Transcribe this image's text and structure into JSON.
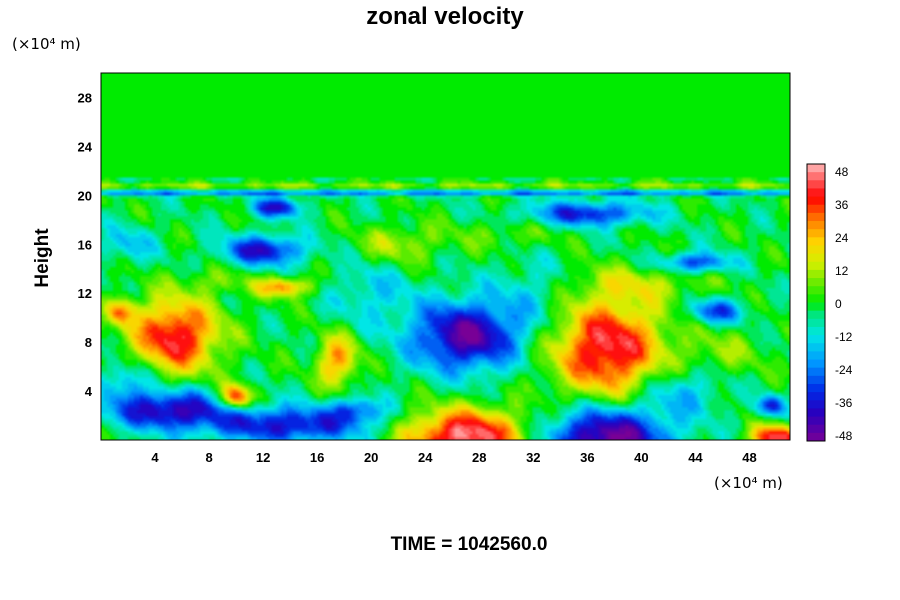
{
  "chart_data": {
    "type": "heatmap",
    "title": "zonal velocity",
    "ylabel": "Height",
    "xlabel": "",
    "x_unit_label": "(×10⁴ m)",
    "y_unit_label": "(×10⁴ m)",
    "x_ticks": [
      "4",
      "8",
      "12",
      "16",
      "20",
      "24",
      "28",
      "32",
      "36",
      "40",
      "44",
      "48"
    ],
    "x_tick_values": [
      4,
      8,
      12,
      16,
      20,
      24,
      28,
      32,
      36,
      40,
      44,
      48
    ],
    "y_ticks": [
      "4",
      "8",
      "12",
      "16",
      "20",
      "24",
      "28"
    ],
    "y_tick_values": [
      4,
      8,
      12,
      16,
      20,
      24,
      28
    ],
    "xlim": [
      0,
      51
    ],
    "ylim": [
      0,
      30
    ],
    "colorbar": {
      "ticks": [
        "48",
        "36",
        "24",
        "12",
        "0",
        "-12",
        "-24",
        "-36",
        "-48"
      ],
      "range": [
        -50,
        50
      ]
    },
    "footer": "TIME = 1042560.0",
    "features": [
      {
        "x": 5.5,
        "y": 8.5,
        "value": 44,
        "rx": 3.2,
        "ry": 3.0
      },
      {
        "x": 10,
        "y": 3.5,
        "value": 42,
        "rx": 1.2,
        "ry": 1.0
      },
      {
        "x": 27,
        "y": 0.3,
        "value": 50,
        "rx": 4.5,
        "ry": 2.2
      },
      {
        "x": 37.5,
        "y": 7.5,
        "value": 46,
        "rx": 4.0,
        "ry": 4.0
      },
      {
        "x": 37.5,
        "y": 0.2,
        "value": -50,
        "rx": 4.5,
        "ry": 2.5
      },
      {
        "x": 27,
        "y": 8.5,
        "value": -45,
        "rx": 4.0,
        "ry": 2.8
      },
      {
        "x": 5,
        "y": 2.5,
        "value": -40,
        "rx": 4.5,
        "ry": 1.6
      },
      {
        "x": 14,
        "y": 1.2,
        "value": -35,
        "rx": 6.0,
        "ry": 1.5
      },
      {
        "x": 12,
        "y": 15.5,
        "value": -36,
        "rx": 3.0,
        "ry": 1.2
      },
      {
        "x": 13,
        "y": 19,
        "value": -34,
        "rx": 1.8,
        "ry": 0.8
      },
      {
        "x": 36,
        "y": 18.5,
        "value": -32,
        "rx": 4.5,
        "ry": 1.0
      },
      {
        "x": 44,
        "y": 14.5,
        "value": -30,
        "rx": 2.5,
        "ry": 0.8
      },
      {
        "x": 45.5,
        "y": 10.5,
        "value": -28,
        "rx": 2.0,
        "ry": 1.0
      },
      {
        "x": 49.5,
        "y": 2.8,
        "value": -32,
        "rx": 1.0,
        "ry": 0.8
      },
      {
        "x": 50,
        "y": 0.2,
        "value": 46,
        "rx": 1.8,
        "ry": 1.0
      },
      {
        "x": 13.5,
        "y": 12.5,
        "value": 30,
        "rx": 2.0,
        "ry": 0.8
      },
      {
        "x": 17.5,
        "y": 6.5,
        "value": 30,
        "rx": 1.5,
        "ry": 2.0
      },
      {
        "x": 1.5,
        "y": 10.5,
        "value": 28,
        "rx": 1.0,
        "ry": 1.0
      },
      {
        "x": 19,
        "y": 2.5,
        "value": -22,
        "rx": 2.0,
        "ry": 1.0
      },
      {
        "x": 40,
        "y": 12.8,
        "value": 12,
        "rx": 5.0,
        "ry": 1.4
      },
      {
        "x": 20,
        "y": 12,
        "value": -12,
        "rx": 3.0,
        "ry": 2.5
      },
      {
        "x": 32,
        "y": 12,
        "value": -10,
        "rx": 3.0,
        "ry": 3.0
      },
      {
        "x": 22,
        "y": 16,
        "value": 14,
        "rx": 3.0,
        "ry": 1.5
      },
      {
        "x": 30,
        "y": 16.8,
        "value": 8,
        "rx": 4.0,
        "ry": 1.2
      },
      {
        "x": 2,
        "y": 16,
        "value": -14,
        "rx": 2.0,
        "ry": 1.5
      },
      {
        "x": 46,
        "y": 7,
        "value": 10,
        "rx": 3.0,
        "ry": 2.0
      },
      {
        "x": 43,
        "y": 4,
        "value": -16,
        "rx": 3.0,
        "ry": 2.0
      },
      {
        "x": 8.5,
        "y": 13,
        "value": 8,
        "rx": 2.5,
        "ry": 1.0
      },
      {
        "x": 2,
        "y": 5,
        "value": -18,
        "rx": 1.8,
        "ry": 1.5
      }
    ]
  }
}
